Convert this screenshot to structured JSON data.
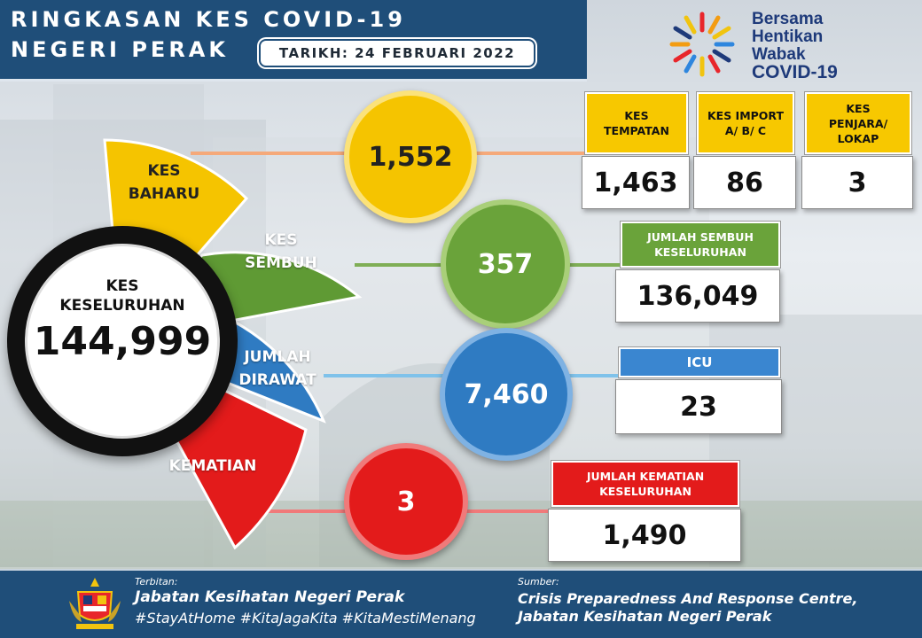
{
  "header": {
    "title_line1": "RINGKASAN KES COVID-19",
    "title_line2": "NEGERI PERAK",
    "date": "TARIKH: 24 FEBRUARI 2022"
  },
  "logo": {
    "line1": "Bersama",
    "line2": "Hentikan",
    "line3": "Wabak",
    "line4": "COVID-19"
  },
  "total": {
    "label_line1": "KES",
    "label_line2": "KESELURUHAN",
    "value": "144,999"
  },
  "wedges": {
    "kes_baharu": [
      "KES",
      "BAHARU"
    ],
    "kes_sembuh": [
      "KES",
      "SEMBUH"
    ],
    "jumlah_dirawat": [
      "JUMLAH",
      "DIRAWAT"
    ],
    "kematian": [
      "KEMATIAN"
    ]
  },
  "circles": {
    "kes_baharu": "1,552",
    "kes_sembuh": "357",
    "jumlah_dirawat": "7,460",
    "kematian": "3"
  },
  "new_cases_breakdown": [
    {
      "label_lines": [
        "KES",
        "TEMPATAN"
      ],
      "value": "1,463"
    },
    {
      "label_lines": [
        "KES IMPORT",
        "A/ B/ C"
      ],
      "value": "86"
    },
    {
      "label_lines": [
        "KES",
        "PENJARA/",
        "LOKAP"
      ],
      "value": "3"
    }
  ],
  "recovered_total": {
    "label_lines": [
      "JUMLAH SEMBUH",
      "KESELURUHAN"
    ],
    "value": "136,049"
  },
  "icu": {
    "label": "ICU",
    "value": "23"
  },
  "deaths_total": {
    "label_lines": [
      "JUMLAH KEMATIAN",
      "KESELURUHAN"
    ],
    "value": "1,490"
  },
  "footer": {
    "published_by_label": "Terbitan:",
    "published_by": "Jabatan Kesihatan Negeri Perak",
    "hashtags": "#StayAtHome #KitaJagaKita #KitaMestiMenang",
    "source_label": "Sumber:",
    "source_line1": "Crisis Preparedness And Response Centre,",
    "source_line2": "Jabatan Kesihatan Negeri Perak"
  },
  "colors": {
    "navy": "#1f4e79",
    "yellow": "#f5c400",
    "green": "#6aa33a",
    "blue": "#2f7bc2",
    "red": "#e31b1b"
  }
}
